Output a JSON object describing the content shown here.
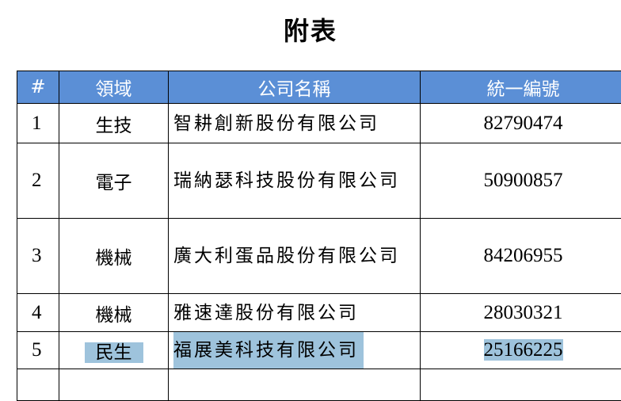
{
  "title": "附表",
  "header_color": "#5b8fd6",
  "highlight_color": "#9ec3dc",
  "columns": [
    "#",
    "領域",
    "公司名稱",
    "統一編號"
  ],
  "rows": [
    {
      "no": "1",
      "field": "生技",
      "company": "智耕創新股份有限公司",
      "id": "82790474"
    },
    {
      "no": "2",
      "field": "電子",
      "company": "瑞納瑟科技股份有限公司",
      "id": "50900857"
    },
    {
      "no": "3",
      "field": "機械",
      "company": "廣大利蛋品股份有限公司",
      "id": "84206955"
    },
    {
      "no": "4",
      "field": "機械",
      "company": "雅速達股份有限公司",
      "id": "28030321"
    },
    {
      "no": "5",
      "field": "民生",
      "company": "福展美科技有限公司",
      "id": "25166225",
      "highlighted": true
    }
  ]
}
